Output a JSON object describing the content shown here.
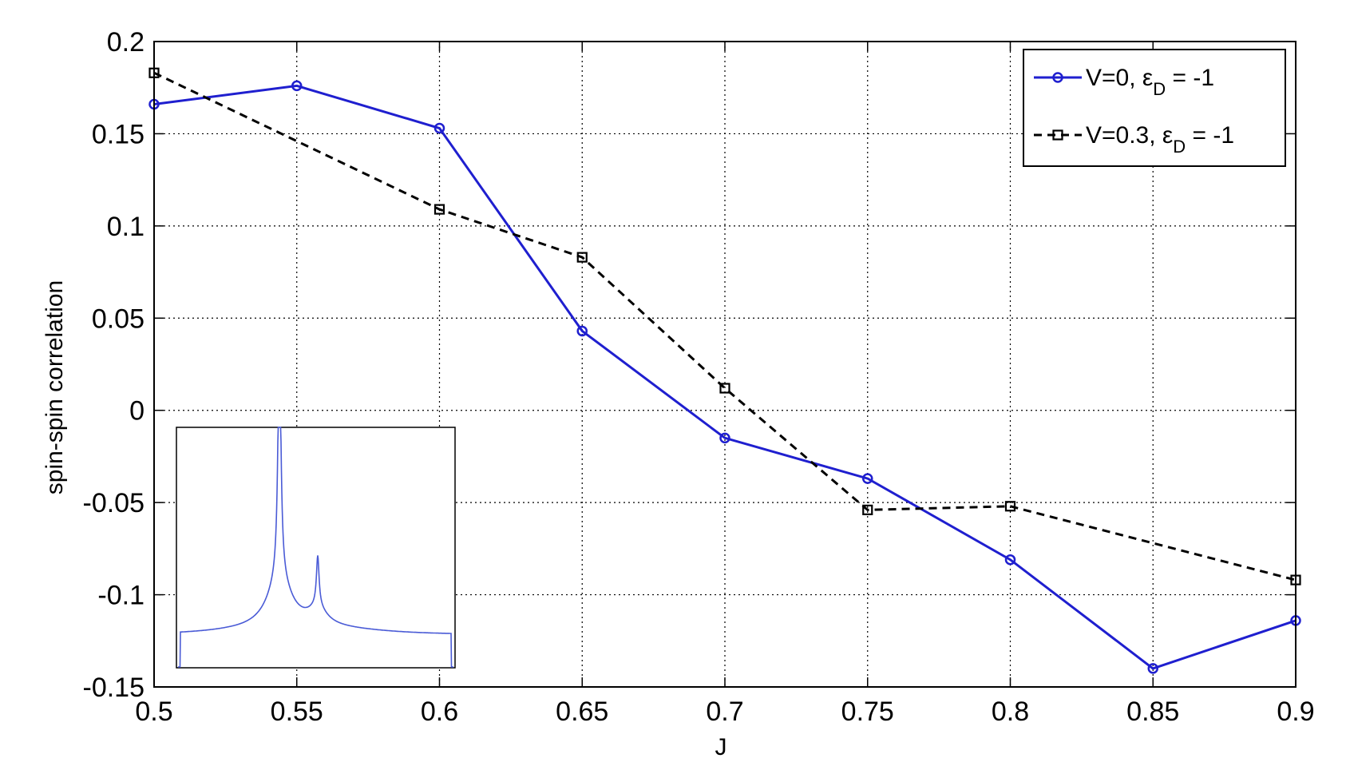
{
  "chart_data": {
    "type": "line",
    "title": "",
    "xlabel": "J",
    "ylabel": "spin-spin correlation",
    "xlim": [
      0.5,
      0.9
    ],
    "ylim": [
      -0.15,
      0.2
    ],
    "grid": true,
    "legend_position": "top-right",
    "x_ticks": [
      "0.5",
      "0.55",
      "0.6",
      "0.65",
      "0.7",
      "0.75",
      "0.8",
      "0.85",
      "0.9"
    ],
    "y_ticks": [
      "0.2",
      "0.15",
      "0.1",
      "0.05",
      "0",
      "-0.05",
      "-0.1",
      "-0.15"
    ],
    "x": [
      0.5,
      0.55,
      0.6,
      0.65,
      0.7,
      0.75,
      0.8,
      0.85,
      0.9
    ],
    "series": [
      {
        "name": "V=0, εD = -1",
        "legend_main": "V=0, ε",
        "legend_sub": "D",
        "legend_tail": " = -1",
        "color": "#1f1fcf",
        "marker": "circle",
        "line_style": "solid",
        "values": [
          0.166,
          0.176,
          0.153,
          0.043,
          -0.015,
          -0.037,
          -0.081,
          -0.14,
          -0.114
        ]
      },
      {
        "name": "V=0.3, εD = -1",
        "legend_main": "V=0.3, ε",
        "legend_sub": "D",
        "legend_tail": " = -1",
        "color": "#000000",
        "marker": "square",
        "line_style": "dashed",
        "values": [
          0.183,
          null,
          0.109,
          0.083,
          0.012,
          -0.054,
          -0.052,
          null,
          -0.092
        ]
      }
    ],
    "inset": {
      "type": "line",
      "color": "#4a5bd6",
      "description_free": true
    }
  }
}
